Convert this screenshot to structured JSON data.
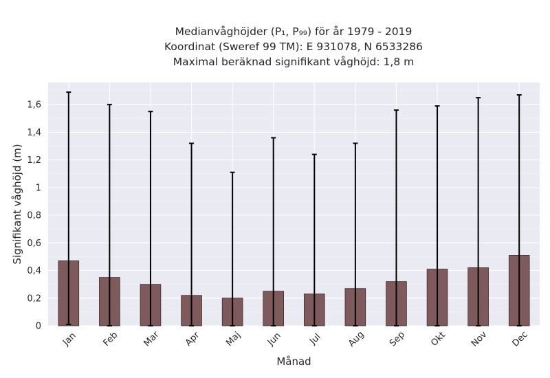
{
  "chart_data": {
    "type": "bar",
    "title_lines": [
      "Medianvåghöjder (P₁, P₉₉) för år 1979 - 2019",
      "Koordinat (Sweref 99 TM): E 931078, N 6533286",
      "Maximal beräknad signifikant våghöjd: 1,8 m"
    ],
    "xlabel": "Månad",
    "ylabel": "Signifikant våghöjd (m)",
    "categories": [
      "Jan",
      "Feb",
      "Mar",
      "Apr",
      "Maj",
      "Jun",
      "Jul",
      "Aug",
      "Sep",
      "Okt",
      "Nov",
      "Dec"
    ],
    "values": [
      0.47,
      0.35,
      0.3,
      0.22,
      0.2,
      0.25,
      0.23,
      0.27,
      0.32,
      0.41,
      0.42,
      0.51
    ],
    "error_low": [
      0.01,
      0.0,
      0.0,
      0.0,
      0.0,
      0.0,
      0.0,
      0.0,
      0.0,
      0.0,
      0.0,
      0.0
    ],
    "error_high": [
      1.69,
      1.6,
      1.55,
      1.32,
      1.11,
      1.36,
      1.24,
      1.32,
      1.56,
      1.59,
      1.65,
      1.67
    ],
    "yticks": [
      "0",
      "0,2",
      "0,4",
      "0,6",
      "0,8",
      "1",
      "1,2",
      "1,4",
      "1,6"
    ],
    "ytick_values": [
      0,
      0.2,
      0.4,
      0.6,
      0.8,
      1.0,
      1.2,
      1.4,
      1.6
    ],
    "ylim": [
      0,
      1.76
    ],
    "grid": true,
    "colors": {
      "bar": "#7f5a5c",
      "bar_edge": "#3e2a2b",
      "error": "#000000",
      "plot_bg": "#eaeaf2",
      "grid": "#ffffff"
    }
  }
}
